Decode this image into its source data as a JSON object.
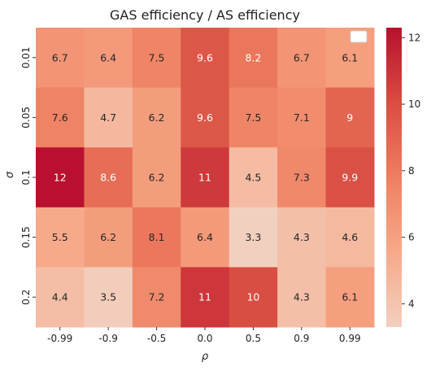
{
  "chart_data": {
    "type": "heatmap",
    "title": "GAS efficiency / AS efficiency",
    "xlabel": "ρ",
    "ylabel": "σ",
    "x_categories": [
      "-0.99",
      "-0.9",
      "-0.5",
      "0.0",
      "0.5",
      "0.9",
      "0.99"
    ],
    "y_categories": [
      "0.01",
      "0.05",
      "0.1",
      "0.15",
      "0.2"
    ],
    "values": [
      [
        6.7,
        6.4,
        7.5,
        9.6,
        8.2,
        6.7,
        6.1
      ],
      [
        7.6,
        4.7,
        6.2,
        9.6,
        7.5,
        7.1,
        9.0
      ],
      [
        12.3,
        8.6,
        6.2,
        10.8,
        4.5,
        7.3,
        9.9
      ],
      [
        5.5,
        6.2,
        8.1,
        6.4,
        3.3,
        4.3,
        4.6
      ],
      [
        4.4,
        3.5,
        7.2,
        10.9,
        10.0,
        4.3,
        6.1
      ]
    ],
    "labels": [
      [
        "6.7",
        "6.4",
        "7.5",
        "9.6",
        "8.2",
        "6.7",
        "6.1"
      ],
      [
        "7.6",
        "4.7",
        "6.2",
        "9.6",
        "7.5",
        "7.1",
        "9"
      ],
      [
        "12",
        "8.6",
        "6.2",
        "11",
        "4.5",
        "7.3",
        "9.9"
      ],
      [
        "5.5",
        "6.2",
        "8.1",
        "6.4",
        "3.3",
        "4.3",
        "4.6"
      ],
      [
        "4.4",
        "3.5",
        "7.2",
        "11",
        "10",
        "4.3",
        "6.1"
      ]
    ],
    "colorbar": {
      "range": [
        3.3,
        12.3
      ],
      "ticks": [
        4,
        6,
        8,
        10,
        12
      ]
    },
    "colormap_colors": [
      "#f2d0c0",
      "#f7a989",
      "#ee7f61",
      "#d94d42",
      "#b8102e"
    ],
    "legend_placement": "top-right",
    "grid": false
  }
}
